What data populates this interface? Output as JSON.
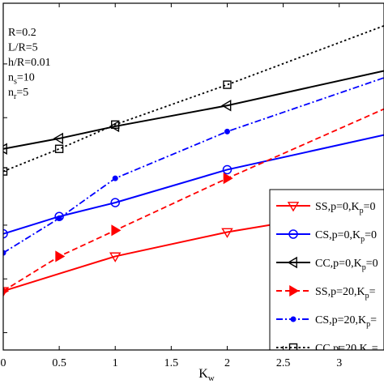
{
  "chart_data": {
    "type": "line",
    "xlabel": "K",
    "xlabel_sub": "w",
    "ylabel": "",
    "xlim": [
      0,
      3.4
    ],
    "ylim": [
      0,
      1
    ],
    "x_ticks": [
      {
        "v": 0,
        "label": "0"
      },
      {
        "v": 0.5,
        "label": "0.5"
      },
      {
        "v": 1,
        "label": "1"
      },
      {
        "v": 1.5,
        "label": "1.5"
      },
      {
        "v": 2,
        "label": "2"
      },
      {
        "v": 2.5,
        "label": "2.5"
      },
      {
        "v": 3,
        "label": "3"
      }
    ],
    "y_ticks": [
      0.05,
      0.205,
      0.36,
      0.515,
      0.67,
      0.825
    ],
    "grid": false,
    "legend_position": "bottom-right",
    "annotation_lines": [
      {
        "parts": [
          {
            "t": "R=0.2"
          }
        ]
      },
      {
        "parts": [
          {
            "t": "L/R=5"
          }
        ]
      },
      {
        "parts": [
          {
            "t": "h/R=0.01"
          }
        ]
      },
      {
        "parts": [
          {
            "t": "n"
          },
          {
            "t": "s",
            "sub": true
          },
          {
            "t": "=10"
          }
        ]
      },
      {
        "parts": [
          {
            "t": "n"
          },
          {
            "t": "r",
            "sub": true
          },
          {
            "t": "=5"
          }
        ]
      }
    ],
    "series": [
      {
        "name": "SS,p=0,K",
        "name_sub": "p",
        "name_tail": "=0",
        "color": "#ff0000",
        "dash": "solid",
        "marker": "triangle-down",
        "x": [
          0,
          0.5,
          1,
          2,
          3.4
        ],
        "y": [
          0.17,
          0.22,
          0.27,
          0.34,
          0.415
        ],
        "marker_x": [
          0,
          1,
          2
        ]
      },
      {
        "name": "CS,p=0,K",
        "name_sub": "p",
        "name_tail": "=0",
        "color": "#0000ff",
        "dash": "solid",
        "marker": "circle",
        "x": [
          0,
          0.5,
          1,
          2,
          3.4
        ],
        "y": [
          0.335,
          0.385,
          0.425,
          0.52,
          0.62
        ],
        "marker_x": [
          0,
          0.5,
          1,
          2
        ]
      },
      {
        "name": "CC,p=0,K",
        "name_sub": "p",
        "name_tail": "=0",
        "color": "#000000",
        "dash": "solid",
        "marker": "triangle-left",
        "x": [
          0,
          0.5,
          1,
          2,
          3.4
        ],
        "y": [
          0.58,
          0.61,
          0.645,
          0.705,
          0.805
        ],
        "marker_x": [
          0,
          0.5,
          1,
          2
        ]
      },
      {
        "name": "SS,p=20,K",
        "name_sub": "p",
        "name_tail": "=",
        "color": "#ff0000",
        "dash": "dash",
        "marker": "triangle-right",
        "x": [
          0,
          0.5,
          1,
          2,
          3.4
        ],
        "y": [
          0.17,
          0.27,
          0.345,
          0.495,
          0.695
        ],
        "marker_x": [
          0,
          0.5,
          1,
          2
        ]
      },
      {
        "name": "CS,p=20,K",
        "name_sub": "p",
        "name_tail": "=",
        "color": "#0000ff",
        "dash": "dashdot",
        "marker": "dot",
        "x": [
          0,
          0.5,
          1,
          2,
          3.4
        ],
        "y": [
          0.28,
          0.38,
          0.495,
          0.63,
          0.785
        ],
        "marker_x": [
          0,
          0.5,
          1,
          2
        ]
      },
      {
        "name": "CC,p=20,K",
        "name_sub": "p",
        "name_tail": "=",
        "color": "#000000",
        "dash": "dot",
        "marker": "square",
        "x": [
          0,
          0.5,
          1,
          2,
          3.4
        ],
        "y": [
          0.515,
          0.58,
          0.65,
          0.765,
          0.935
        ],
        "marker_x": [
          0,
          0.5,
          1,
          2
        ]
      }
    ]
  }
}
